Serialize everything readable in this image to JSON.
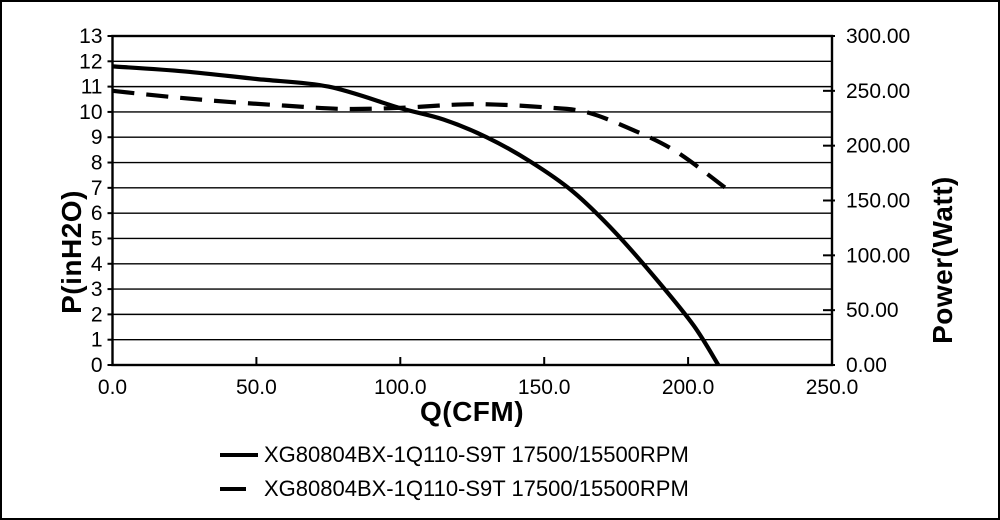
{
  "colors": {
    "line": "#000000",
    "background": "#ffffff",
    "border": "#000000"
  },
  "chart_data": {
    "type": "line",
    "title": "",
    "xlabel": "Q(CFM)",
    "ylabel_left": "P(inH2O)",
    "ylabel_right": "Power(Watt)",
    "xlim": [
      0,
      250
    ],
    "ylim_left": [
      0,
      13
    ],
    "ylim_right": [
      0,
      300
    ],
    "x_ticks": [
      "0.0",
      "50.0",
      "100.0",
      "150.0",
      "200.0",
      "250.0"
    ],
    "y_left_ticks": [
      "0",
      "1",
      "2",
      "3",
      "4",
      "5",
      "6",
      "7",
      "8",
      "9",
      "10",
      "11",
      "12",
      "13"
    ],
    "y_right_ticks": [
      "0.00",
      "50.00",
      "100.00",
      "150.00",
      "200.00",
      "250.00",
      "300.00"
    ],
    "grid": "horizontal-gridlines-every-1-left-unit",
    "legend_position": "bottom",
    "series": [
      {
        "name": "XG80804BX-1Q110-S9T 17500/15500RPM",
        "style": "solid",
        "axis": "left",
        "x": [
          0,
          25,
          50,
          75,
          100,
          115,
          130,
          145,
          160,
          175,
          190,
          202,
          210.5
        ],
        "y": [
          11.8,
          11.6,
          11.3,
          11.0,
          10.15,
          9.7,
          9.0,
          8.05,
          6.85,
          5.2,
          3.25,
          1.55,
          0
        ]
      },
      {
        "name": "XG80804BX-1Q110-S9T 17500/15500RPM",
        "style": "dashed",
        "axis": "right",
        "x": [
          0,
          20,
          40,
          60,
          80,
          100,
          120,
          133,
          150,
          164,
          178,
          195,
          213
        ],
        "y": [
          250,
          244.5,
          240,
          236.5,
          233.5,
          234.5,
          237.5,
          237.5,
          235,
          231,
          217.5,
          196,
          161.5
        ]
      }
    ]
  }
}
